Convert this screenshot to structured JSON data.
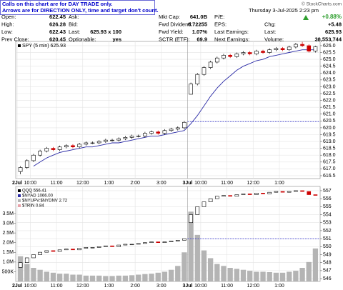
{
  "header": {
    "notice": [
      "Calls on this chart are for DAY TRADE only.",
      "Arrows are for DIRECTION ONLY, time and target don't count."
    ],
    "copyright": "© StockCharts.com",
    "datetime": "Thursday  3-Jul-2025  2:23 pm",
    "change_pct": "+0.88%",
    "columns": [
      [
        [
          "Open:",
          "622.45"
        ],
        [
          "High:",
          "626.28"
        ],
        [
          "Low:",
          "622.43"
        ],
        [
          "Prev Close:",
          "620.45"
        ]
      ],
      [
        [
          "Ask:"
        ],
        [
          "Bid:"
        ],
        [
          "Last:",
          "625.93 x 100"
        ],
        [
          "Optionable:",
          "yes"
        ]
      ],
      [
        [
          "Mkt Cap:",
          "641.0B"
        ],
        [
          "Fwd Dividend:",
          "6.72255"
        ],
        [
          "Fwd Yield:",
          "1.07%"
        ],
        [
          "SCTR (ETF):",
          "69.9"
        ]
      ],
      [
        [
          "P/E:"
        ],
        [
          "EPS:"
        ],
        [
          "Last Earnings:"
        ],
        [
          "Next Earnings:"
        ]
      ],
      [
        [
          "Chg:",
          "+5.48"
        ],
        [
          "Last:",
          "625.93"
        ],
        [
          "Volume:",
          "38,553,744"
        ]
      ]
    ]
  },
  "chart_data": [
    {
      "type": "candlestick",
      "legend": "SPY (5 min) 625.93",
      "categories": [
        "2Jul",
        null,
        "10:00",
        null,
        null,
        null,
        "11:00",
        null,
        null,
        null,
        "12:00",
        null,
        null,
        null,
        "1:00",
        null,
        null,
        null,
        "2:00",
        null,
        null,
        null,
        "3:00",
        null,
        null,
        null,
        "3Jul",
        null,
        "10:00",
        null,
        null,
        null,
        "11:00",
        null,
        null,
        null,
        "12:00",
        null,
        null,
        null,
        "1:00",
        null,
        null,
        null,
        null,
        null
      ],
      "open": [
        616.8,
        617.1,
        617.6,
        618.0,
        618.3,
        618.5,
        618.4,
        618.6,
        618.7,
        618.6,
        618.8,
        618.9,
        618.9,
        619.0,
        619.1,
        619.1,
        619.2,
        619.3,
        619.4,
        619.4,
        619.6,
        619.7,
        619.6,
        619.8,
        619.9,
        620.0,
        622.45,
        623.2,
        623.9,
        624.4,
        624.8,
        625.1,
        625.3,
        625.2,
        625.4,
        625.5,
        625.4,
        625.6,
        625.5,
        625.7,
        625.8,
        625.7,
        625.9,
        626.1,
        626.0,
        625.6
      ],
      "high": [
        617.2,
        617.7,
        618.1,
        618.4,
        618.6,
        618.6,
        618.7,
        618.8,
        618.8,
        618.9,
        619.0,
        619.0,
        619.1,
        619.2,
        619.2,
        619.3,
        619.4,
        619.5,
        619.5,
        619.7,
        619.8,
        619.8,
        619.9,
        620.0,
        620.1,
        620.5,
        623.3,
        624.0,
        624.5,
        624.9,
        625.2,
        625.4,
        625.4,
        625.5,
        625.6,
        625.6,
        625.7,
        625.7,
        625.8,
        625.9,
        625.9,
        626.0,
        626.2,
        626.28,
        626.1,
        626.0
      ],
      "low": [
        616.6,
        617.0,
        617.5,
        617.9,
        618.2,
        618.3,
        618.3,
        618.5,
        618.5,
        618.5,
        618.7,
        618.8,
        618.8,
        618.9,
        619.0,
        619.0,
        619.1,
        619.2,
        619.3,
        619.3,
        619.5,
        619.5,
        619.5,
        619.7,
        619.8,
        619.9,
        622.43,
        623.1,
        623.8,
        624.3,
        624.7,
        625.0,
        625.1,
        625.1,
        625.3,
        625.3,
        625.3,
        625.4,
        625.4,
        625.6,
        625.6,
        625.6,
        625.8,
        625.9,
        625.5,
        625.5
      ],
      "close": [
        617.1,
        617.6,
        618.0,
        618.3,
        618.5,
        618.4,
        618.6,
        618.7,
        618.6,
        618.8,
        618.9,
        618.9,
        619.0,
        619.1,
        619.1,
        619.2,
        619.3,
        619.4,
        619.4,
        619.6,
        619.7,
        619.6,
        619.8,
        619.9,
        620.0,
        620.4,
        623.2,
        623.9,
        624.4,
        624.8,
        625.1,
        625.3,
        625.2,
        625.4,
        625.5,
        625.4,
        625.6,
        625.5,
        625.7,
        625.8,
        625.7,
        625.9,
        626.1,
        626.0,
        625.6,
        625.93
      ],
      "up_color": "#000000",
      "down_color": "#cc0000",
      "ma": {
        "color": "#2b2ba6",
        "values": [
          null,
          null,
          617.2,
          617.5,
          617.8,
          618.0,
          618.2,
          618.3,
          618.4,
          618.5,
          618.6,
          618.6,
          618.7,
          618.8,
          618.9,
          618.9,
          619.0,
          619.1,
          619.2,
          619.3,
          619.4,
          619.4,
          619.5,
          619.6,
          619.7,
          619.8,
          620.3,
          620.9,
          621.6,
          622.3,
          622.9,
          623.4,
          623.8,
          624.2,
          624.5,
          624.7,
          624.9,
          625.0,
          625.2,
          625.3,
          625.4,
          625.5,
          625.6,
          625.7,
          625.7,
          625.7
        ]
      },
      "ref_line": 620.45,
      "ref_color": "#2b2bd0",
      "ylim": [
        616.29,
        626.31
      ],
      "yticks": [
        616.5,
        {
          "value": 617,
          "label": "617.0"
        },
        617.5,
        {
          "value": 618,
          "label": "618.0"
        },
        618.5,
        {
          "value": 619,
          "label": "619.0"
        },
        619.5,
        {
          "value": 620,
          "label": "620.0"
        },
        620.5,
        {
          "value": 621,
          "label": "621.0"
        },
        621.5,
        {
          "value": 622,
          "label": "622.0"
        },
        622.5,
        {
          "value": 623,
          "label": "623.0"
        },
        623.5,
        {
          "value": 624,
          "label": "624.0"
        },
        624.5,
        {
          "value": 625,
          "label": "625.0"
        },
        625.5,
        {
          "value": 626,
          "label": "626.0"
        }
      ],
      "grid": true
    },
    {
      "type": "candlestick",
      "legend": [
        "QQQ 556.41",
        "$NYAD 1066.00",
        "$NYUPV:$NYDNV 2.72",
        "$TRIN 0.84"
      ],
      "legend_colors": [
        "#000000",
        "#2b2ba6",
        "#b4b4b4",
        "#e8a0a8"
      ],
      "categories": [
        "2Jul",
        null,
        "10:00",
        null,
        null,
        null,
        "11:00",
        null,
        null,
        null,
        "12:00",
        null,
        null,
        null,
        "1:00",
        null,
        null,
        null,
        "2:00",
        null,
        null,
        null,
        "3:00",
        null,
        null,
        null,
        "3Jul",
        null,
        "10:00",
        null,
        null,
        null,
        "11:00",
        null,
        null,
        null,
        "12:00",
        null,
        null,
        null,
        "1:00",
        null,
        null,
        null,
        null,
        null
      ],
      "open": [
        547.4,
        548.0,
        548.6,
        549.0,
        549.3,
        549.5,
        549.4,
        549.6,
        549.7,
        549.6,
        549.8,
        549.9,
        549.9,
        550.0,
        550.1,
        550.0,
        550.2,
        550.3,
        550.3,
        550.4,
        550.5,
        550.6,
        550.5,
        550.6,
        550.7,
        550.8,
        553.0,
        554.0,
        555.0,
        555.6,
        556.0,
        556.3,
        556.4,
        556.3,
        556.5,
        556.6,
        556.5,
        556.7,
        556.6,
        556.8,
        556.9,
        556.8,
        556.9,
        557.0,
        556.9,
        556.5
      ],
      "close": [
        548.0,
        548.6,
        549.0,
        549.3,
        549.5,
        549.4,
        549.6,
        549.7,
        549.6,
        549.8,
        549.9,
        549.9,
        550.0,
        550.1,
        550.0,
        550.2,
        550.3,
        550.3,
        550.4,
        550.5,
        550.6,
        550.5,
        550.6,
        550.7,
        550.8,
        551.0,
        554.0,
        555.0,
        555.6,
        556.0,
        556.3,
        556.4,
        556.3,
        556.5,
        556.6,
        556.5,
        556.7,
        556.6,
        556.8,
        556.9,
        556.8,
        556.9,
        557.0,
        556.9,
        556.5,
        556.41
      ],
      "up_color": "#000000",
      "down_color": "#cc0000",
      "ref_line": 551.0,
      "ref_color": "#2b2bd0",
      "ylim": [
        545.65,
        557.53
      ],
      "yticks": [
        546,
        547,
        548,
        549,
        550,
        551,
        552,
        553,
        554,
        555,
        556,
        557
      ],
      "grid": true,
      "volume": {
        "color": "#b4b4b4",
        "values": [
          1300000,
          900000,
          700000,
          600000,
          500000,
          450000,
          400000,
          400000,
          350000,
          350000,
          300000,
          300000,
          300000,
          280000,
          280000,
          300000,
          300000,
          320000,
          350000,
          380000,
          400000,
          450000,
          500000,
          600000,
          800000,
          1500000,
          3600000,
          2400000,
          1600000,
          1200000,
          900000,
          800000,
          700000,
          650000,
          600000,
          550000,
          500000,
          500000,
          480000,
          450000,
          450000,
          500000,
          550000,
          700000,
          1000000,
          1700000
        ],
        "ylim": [
          0,
          4900000
        ],
        "yticks": [
          {
            "value": 500000,
            "label": "500K"
          },
          {
            "value": 1000000,
            "label": "1.0M"
          },
          {
            "value": 1500000,
            "label": "1.5M"
          },
          {
            "value": 2000000,
            "label": "2.0M"
          },
          {
            "value": 2500000,
            "label": "2.5M"
          },
          {
            "value": 3000000,
            "label": "3.0M"
          },
          {
            "value": 3500000,
            "label": "3.5M"
          }
        ]
      }
    }
  ]
}
